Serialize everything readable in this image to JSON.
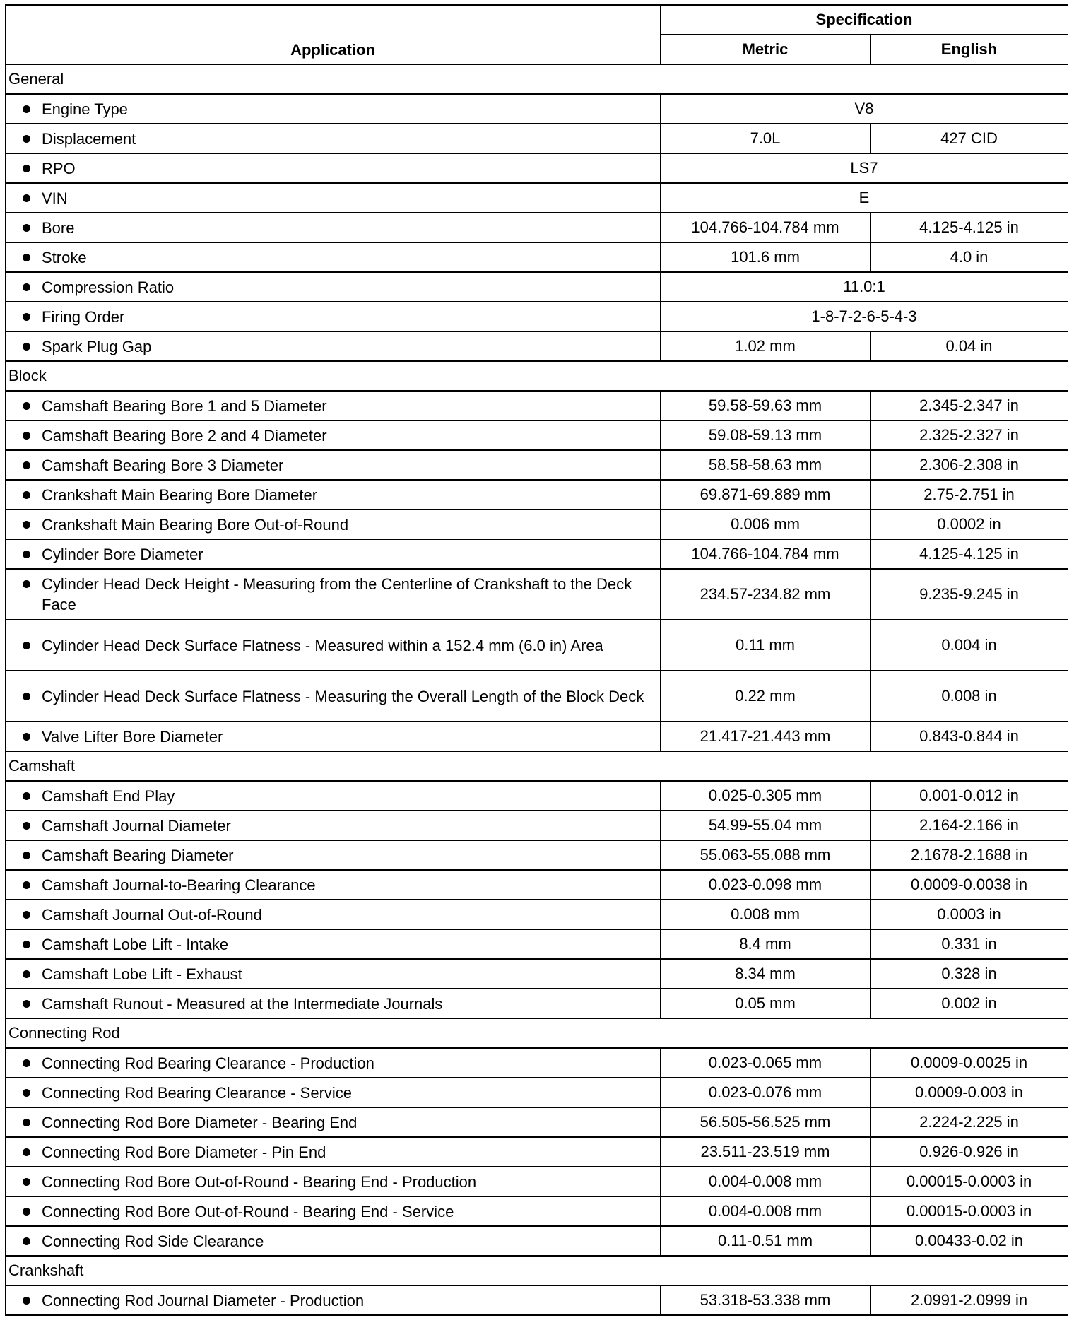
{
  "header": {
    "application": "Application",
    "specification": "Specification",
    "metric": "Metric",
    "english": "English"
  },
  "sections": [
    {
      "title": "General",
      "rows": [
        {
          "label": "Engine Type",
          "value": "V8"
        },
        {
          "label": "Displacement",
          "metric": "7.0L",
          "english": "427 CID"
        },
        {
          "label": "RPO",
          "value": "LS7"
        },
        {
          "label": "VIN",
          "value": "E"
        },
        {
          "label": "Bore",
          "metric": "104.766-104.784 mm",
          "english": "4.125-4.125 in"
        },
        {
          "label": "Stroke",
          "metric": "101.6 mm",
          "english": "4.0 in"
        },
        {
          "label": "Compression Ratio",
          "value": "11.0:1"
        },
        {
          "label": "Firing Order",
          "value": "1-8-7-2-6-5-4-3"
        },
        {
          "label": "Spark Plug Gap",
          "metric": "1.02 mm",
          "english": "0.04 in"
        }
      ]
    },
    {
      "title": "Block",
      "rows": [
        {
          "label": "Camshaft Bearing Bore 1 and 5 Diameter",
          "metric": "59.58-59.63 mm",
          "english": "2.345-2.347 in"
        },
        {
          "label": "Camshaft Bearing Bore 2 and 4 Diameter",
          "metric": "59.08-59.13 mm",
          "english": "2.325-2.327 in"
        },
        {
          "label": "Camshaft Bearing Bore 3 Diameter",
          "metric": "58.58-58.63 mm",
          "english": "2.306-2.308 in"
        },
        {
          "label": "Crankshaft Main Bearing Bore Diameter",
          "metric": "69.871-69.889 mm",
          "english": "2.75-2.751 in"
        },
        {
          "label": "Crankshaft Main Bearing Bore Out-of-Round",
          "metric": "0.006 mm",
          "english": "0.0002 in"
        },
        {
          "label": "Cylinder Bore Diameter",
          "metric": "104.766-104.784 mm",
          "english": "4.125-4.125 in"
        },
        {
          "label": "Cylinder Head Deck Height - Measuring from the Centerline of Crankshaft to the Deck Face",
          "metric": "234.57-234.82 mm",
          "english": "9.235-9.245 in",
          "two": true
        },
        {
          "label": "Cylinder Head Deck Surface Flatness - Measured within a 152.4 mm (6.0 in) Area",
          "metric": "0.11 mm",
          "english": "0.004 in",
          "two": true
        },
        {
          "label": "Cylinder Head Deck Surface Flatness - Measuring the Overall Length of the Block Deck",
          "metric": "0.22 mm",
          "english": "0.008 in",
          "two": true
        },
        {
          "label": "Valve Lifter Bore Diameter",
          "metric": "21.417-21.443 mm",
          "english": "0.843-0.844 in"
        }
      ]
    },
    {
      "title": "Camshaft",
      "rows": [
        {
          "label": "Camshaft End Play",
          "metric": "0.025-0.305 mm",
          "english": "0.001-0.012 in"
        },
        {
          "label": "Camshaft Journal Diameter",
          "metric": "54.99-55.04 mm",
          "english": "2.164-2.166 in"
        },
        {
          "label": "Camshaft Bearing Diameter",
          "metric": "55.063-55.088 mm",
          "english": "2.1678-2.1688 in"
        },
        {
          "label": "Camshaft Journal-to-Bearing Clearance",
          "metric": "0.023-0.098 mm",
          "english": "0.0009-0.0038 in"
        },
        {
          "label": "Camshaft Journal Out-of-Round",
          "metric": "0.008 mm",
          "english": "0.0003 in"
        },
        {
          "label": "Camshaft Lobe Lift - Intake",
          "metric": "8.4 mm",
          "english": "0.331 in"
        },
        {
          "label": "Camshaft Lobe Lift - Exhaust",
          "metric": "8.34 mm",
          "english": "0.328 in"
        },
        {
          "label": "Camshaft Runout - Measured at the Intermediate Journals",
          "metric": "0.05 mm",
          "english": "0.002 in"
        }
      ]
    },
    {
      "title": "Connecting Rod",
      "rows": [
        {
          "label": "Connecting Rod Bearing Clearance - Production",
          "metric": "0.023-0.065 mm",
          "english": "0.0009-0.0025 in"
        },
        {
          "label": "Connecting Rod Bearing Clearance - Service",
          "metric": "0.023-0.076 mm",
          "english": "0.0009-0.003 in"
        },
        {
          "label": "Connecting Rod Bore Diameter - Bearing End",
          "metric": "56.505-56.525 mm",
          "english": "2.224-2.225 in"
        },
        {
          "label": "Connecting Rod Bore Diameter - Pin End",
          "metric": "23.511-23.519 mm",
          "english": "0.926-0.926 in"
        },
        {
          "label": "Connecting Rod Bore Out-of-Round - Bearing End - Production",
          "metric": "0.004-0.008 mm",
          "english": "0.00015-0.0003 in"
        },
        {
          "label": "Connecting Rod Bore Out-of-Round - Bearing End - Service",
          "metric": "0.004-0.008 mm",
          "english": "0.00015-0.0003 in"
        },
        {
          "label": "Connecting Rod Side Clearance",
          "metric": "0.11-0.51 mm",
          "english": "0.00433-0.02 in"
        }
      ]
    },
    {
      "title": "Crankshaft",
      "rows": [
        {
          "label": "Connecting Rod Journal Diameter - Production",
          "metric": "53.318-53.338 mm",
          "english": "2.0991-2.0999 in"
        }
      ]
    }
  ]
}
